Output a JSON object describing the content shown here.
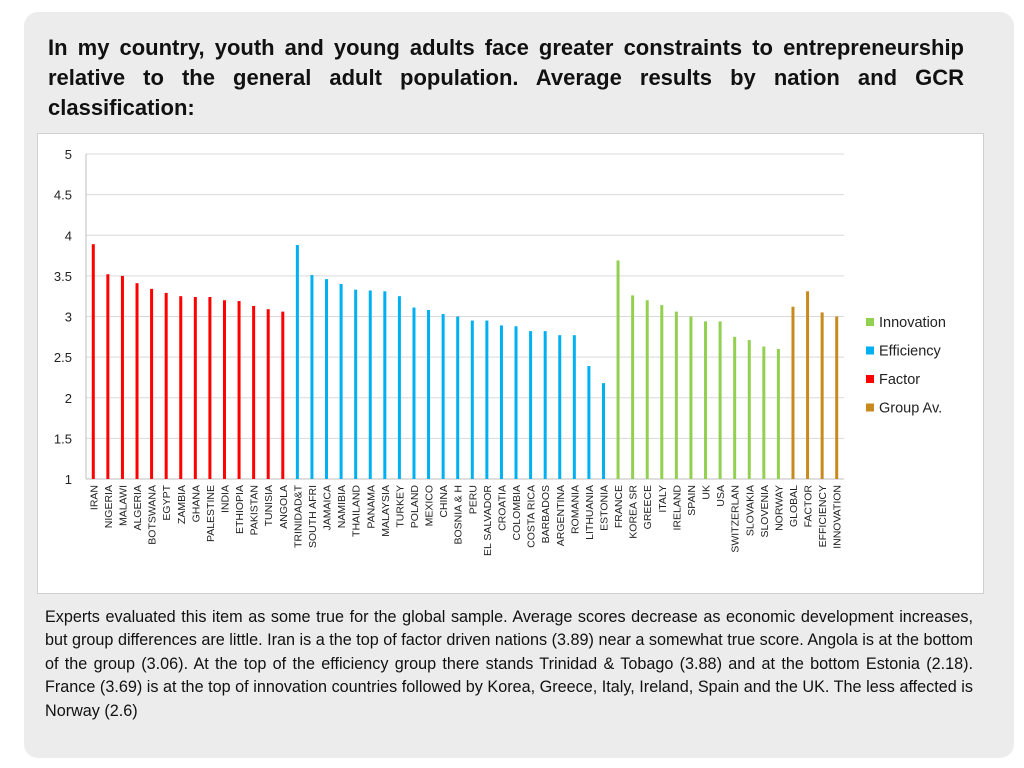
{
  "slide": {
    "title": "In my country, youth and young adults face greater constraints to entrepreneurship relative to the general adult population. Average results by nation and GCR classification:",
    "caption": "Experts evaluated this item as some true for the global sample. Average scores decrease as economic development increases, but group differences are little. Iran is a the top of factor driven nations (3.89) near a somewhat true score. Angola is at the bottom of the group (3.06). At the top of the efficiency group there stands Trinidad & Tobago (3.88) and at the bottom Estonia (2.18). France (3.69) is at the top of innovation countries followed by Korea, Greece, Italy, Ireland, Spain and the UK. The less affected is Norway (2.6)"
  },
  "chart_data": {
    "type": "bar",
    "ylim": [
      1,
      5
    ],
    "yticks": [
      "1",
      "1.5",
      "2",
      "2.5",
      "3",
      "3.5",
      "4",
      "4.5",
      "5"
    ],
    "grid": true,
    "legend_position": "right",
    "legend": [
      {
        "name": "Innovation",
        "color": "#92d050"
      },
      {
        "name": "Efficiency",
        "color": "#00b0f0"
      },
      {
        "name": "Factor",
        "color": "#ff0000"
      },
      {
        "name": "Group Av.",
        "color": "#c8891d"
      }
    ],
    "bars": [
      {
        "label": "IRAN",
        "value": 3.89,
        "group": "Factor"
      },
      {
        "label": "NIGERIA",
        "value": 3.52,
        "group": "Factor"
      },
      {
        "label": "MALAWI",
        "value": 3.5,
        "group": "Factor"
      },
      {
        "label": "ALGERIA",
        "value": 3.41,
        "group": "Factor"
      },
      {
        "label": "BOTSWANA",
        "value": 3.34,
        "group": "Factor"
      },
      {
        "label": "EGYPT",
        "value": 3.29,
        "group": "Factor"
      },
      {
        "label": "ZAMBIA",
        "value": 3.25,
        "group": "Factor"
      },
      {
        "label": "GHANA",
        "value": 3.24,
        "group": "Factor"
      },
      {
        "label": "PALESTINE",
        "value": 3.24,
        "group": "Factor"
      },
      {
        "label": "INDIA",
        "value": 3.2,
        "group": "Factor"
      },
      {
        "label": "ETHIOPIA",
        "value": 3.19,
        "group": "Factor"
      },
      {
        "label": "PAKISTAN",
        "value": 3.13,
        "group": "Factor"
      },
      {
        "label": "TUNISIA",
        "value": 3.09,
        "group": "Factor"
      },
      {
        "label": "ANGOLA",
        "value": 3.06,
        "group": "Factor"
      },
      {
        "label": "TRINIDAD&T",
        "value": 3.88,
        "group": "Efficiency"
      },
      {
        "label": "SOUTH AFRI",
        "value": 3.51,
        "group": "Efficiency"
      },
      {
        "label": "JAMAICA",
        "value": 3.46,
        "group": "Efficiency"
      },
      {
        "label": "NAMIBIA",
        "value": 3.4,
        "group": "Efficiency"
      },
      {
        "label": "THAILAND",
        "value": 3.33,
        "group": "Efficiency"
      },
      {
        "label": "PANAMA",
        "value": 3.32,
        "group": "Efficiency"
      },
      {
        "label": "MALAYSIA",
        "value": 3.31,
        "group": "Efficiency"
      },
      {
        "label": "TURKEY",
        "value": 3.25,
        "group": "Efficiency"
      },
      {
        "label": "POLAND",
        "value": 3.11,
        "group": "Efficiency"
      },
      {
        "label": "MEXICO",
        "value": 3.08,
        "group": "Efficiency"
      },
      {
        "label": "CHINA",
        "value": 3.03,
        "group": "Efficiency"
      },
      {
        "label": "BOSNIA & H",
        "value": 3.0,
        "group": "Efficiency"
      },
      {
        "label": "PERU",
        "value": 2.95,
        "group": "Efficiency"
      },
      {
        "label": "EL SALVADOR",
        "value": 2.95,
        "group": "Efficiency"
      },
      {
        "label": "CROATIA",
        "value": 2.89,
        "group": "Efficiency"
      },
      {
        "label": "COLOMBIA",
        "value": 2.88,
        "group": "Efficiency"
      },
      {
        "label": "COSTA RICA",
        "value": 2.82,
        "group": "Efficiency"
      },
      {
        "label": "BARBADOS",
        "value": 2.82,
        "group": "Efficiency"
      },
      {
        "label": "ARGENTINA",
        "value": 2.77,
        "group": "Efficiency"
      },
      {
        "label": "ROMANIA",
        "value": 2.77,
        "group": "Efficiency"
      },
      {
        "label": "LITHUANIA",
        "value": 2.39,
        "group": "Efficiency"
      },
      {
        "label": "ESTONIA",
        "value": 2.18,
        "group": "Efficiency"
      },
      {
        "label": "FRANCE",
        "value": 3.69,
        "group": "Innovation"
      },
      {
        "label": "KOREA SR",
        "value": 3.26,
        "group": "Innovation"
      },
      {
        "label": "GREECE",
        "value": 3.2,
        "group": "Innovation"
      },
      {
        "label": "ITALY",
        "value": 3.14,
        "group": "Innovation"
      },
      {
        "label": "IRELAND",
        "value": 3.06,
        "group": "Innovation"
      },
      {
        "label": "SPAIN",
        "value": 3.0,
        "group": "Innovation"
      },
      {
        "label": "UK",
        "value": 2.94,
        "group": "Innovation"
      },
      {
        "label": "USA",
        "value": 2.94,
        "group": "Innovation"
      },
      {
        "label": "SWITZERLAN",
        "value": 2.75,
        "group": "Innovation"
      },
      {
        "label": "SLOVAKIA",
        "value": 2.71,
        "group": "Innovation"
      },
      {
        "label": "SLOVENIA",
        "value": 2.63,
        "group": "Innovation"
      },
      {
        "label": "NORWAY",
        "value": 2.6,
        "group": "Innovation"
      },
      {
        "label": "GLOBAL",
        "value": 3.12,
        "group": "Group Av."
      },
      {
        "label": "FACTOR",
        "value": 3.31,
        "group": "Group Av."
      },
      {
        "label": "EFFICIENCY",
        "value": 3.05,
        "group": "Group Av."
      },
      {
        "label": "INNOVATION",
        "value": 3.0,
        "group": "Group Av."
      }
    ]
  }
}
